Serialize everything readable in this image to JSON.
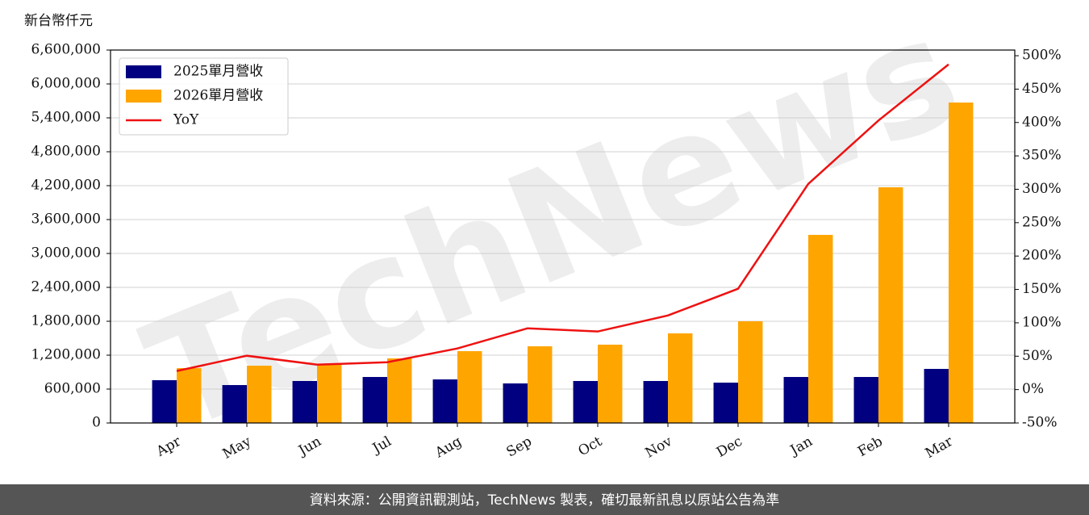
{
  "chart_data": {
    "type": "bar",
    "y_label": "新台幣仟元",
    "watermark": "TechNews",
    "footer": "資料來源：公開資訊觀測站，TechNews 製表，確切最新訊息以原站公告為準",
    "categories": [
      "Apr",
      "May",
      "Jun",
      "Jul",
      "Aug",
      "Sep",
      "Oct",
      "Nov",
      "Dec",
      "Jan",
      "Feb",
      "Mar"
    ],
    "series": [
      {
        "name": "2025單月營收",
        "color": "#000080",
        "type": "bar",
        "values": [
          757000,
          671000,
          743000,
          814000,
          771000,
          700000,
          743000,
          743000,
          714000,
          814000,
          814000,
          957000
        ]
      },
      {
        "name": "2026單月營收",
        "color": "#ffa500",
        "type": "bar",
        "values": [
          971000,
          1014000,
          1043000,
          1143000,
          1271000,
          1357000,
          1386000,
          1586000,
          1800000,
          3329000,
          4171000,
          5671000
        ]
      },
      {
        "name": "YoY",
        "color": "#ee1111",
        "type": "line",
        "axis": "y2",
        "values": [
          27.8,
          50.7,
          37.4,
          41,
          61.6,
          91.8,
          87,
          111,
          151,
          308,
          403,
          487
        ]
      }
    ],
    "ylim": [
      0,
      6600000
    ],
    "yticks": [
      0,
      {
        "value": 600000,
        "label": "600,000"
      },
      {
        "value": 1200000,
        "label": "1,200,000"
      },
      {
        "value": 1800000,
        "label": "1,800,000"
      },
      {
        "value": 2400000,
        "label": "2,400,000"
      },
      {
        "value": 3000000,
        "label": "3,000,000"
      },
      {
        "value": 3600000,
        "label": "3,600,000"
      },
      {
        "value": 4200000,
        "label": "4,200,000"
      },
      {
        "value": 4800000,
        "label": "4,800,000"
      },
      {
        "value": 5400000,
        "label": "5,400,000"
      },
      {
        "value": 6000000,
        "label": "6,000,000"
      },
      {
        "value": 6600000,
        "label": "6,600,000"
      }
    ],
    "y2lim": [
      -50,
      508.5
    ],
    "y2ticks": [
      {
        "value": -50,
        "label": "-50%"
      },
      {
        "value": 0,
        "label": "0%"
      },
      {
        "value": 50,
        "label": "50%"
      },
      {
        "value": 100,
        "label": "100%"
      },
      {
        "value": 150,
        "label": "150%"
      },
      {
        "value": 200,
        "label": "200%"
      },
      {
        "value": 250,
        "label": "250%"
      },
      {
        "value": 300,
        "label": "300%"
      },
      {
        "value": 350,
        "label": "350%"
      },
      {
        "value": 400,
        "label": "400%"
      },
      {
        "value": 450,
        "label": "450%"
      },
      {
        "value": 500,
        "label": "500%"
      }
    ],
    "grid": true,
    "legend": "upper left"
  }
}
